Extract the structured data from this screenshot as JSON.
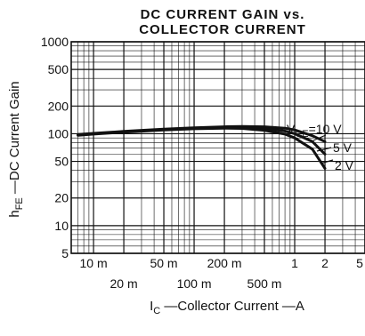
{
  "chart_data": {
    "type": "line",
    "title_lines": [
      "DC CURRENT GAIN vs.",
      "COLLECTOR CURRENT"
    ],
    "xlabel": {
      "main": "I",
      "sub": "C",
      "rest": " —Collector Current —A"
    },
    "ylabel": {
      "main": "h",
      "sub": "FE",
      "rest": " —DC Current Gain"
    },
    "x_scale": "log",
    "y_scale": "log",
    "xlim": [
      0.006,
      5
    ],
    "ylim": [
      5,
      1000
    ],
    "x_ticks_upper": [
      {
        "value": 0.01,
        "label": "10 m"
      },
      {
        "value": 0.05,
        "label": "50 m"
      },
      {
        "value": 0.2,
        "label": "200 m"
      },
      {
        "value": 1,
        "label": "1"
      },
      {
        "value": 2,
        "label": "2"
      },
      {
        "value": 5,
        "label": "5"
      }
    ],
    "x_ticks_lower": [
      {
        "value": 0.02,
        "label": "20 m"
      },
      {
        "value": 0.1,
        "label": "100 m"
      },
      {
        "value": 0.5,
        "label": "500 m"
      }
    ],
    "y_ticks": [
      {
        "value": 1000,
        "label": "1000"
      },
      {
        "value": 500,
        "label": "500"
      },
      {
        "value": 200,
        "label": "200"
      },
      {
        "value": 100,
        "label": "100"
      },
      {
        "value": 50,
        "label": "50"
      },
      {
        "value": 20,
        "label": "20"
      },
      {
        "value": 10,
        "label": "10"
      },
      {
        "value": 5,
        "label": "5"
      }
    ],
    "grid": true,
    "series": [
      {
        "name": "V_CE = 10 V",
        "label_main": "V",
        "label_sub": "CE",
        "label_rest": "=10 V",
        "x": [
          0.007,
          0.01,
          0.02,
          0.05,
          0.1,
          0.2,
          0.3,
          0.5,
          0.8,
          1.0,
          1.5,
          2.0
        ],
        "y": [
          98,
          101,
          106,
          112,
          116,
          119,
          120,
          119,
          115,
          110,
          95,
          82
        ]
      },
      {
        "name": "5 V",
        "label_main": "5 V",
        "x": [
          0.007,
          0.01,
          0.02,
          0.05,
          0.1,
          0.2,
          0.3,
          0.5,
          0.8,
          1.0,
          1.5,
          2.0
        ],
        "y": [
          97,
          100,
          105,
          111,
          115,
          117,
          117,
          114,
          107,
          100,
          82,
          60
        ]
      },
      {
        "name": "2 V",
        "label_main": "2 V",
        "x": [
          0.007,
          0.01,
          0.02,
          0.05,
          0.1,
          0.2,
          0.3,
          0.5,
          0.8,
          1.0,
          1.5,
          2.0
        ],
        "y": [
          96,
          99,
          104,
          110,
          113,
          115,
          114,
          109,
          99,
          90,
          68,
          42
        ]
      }
    ]
  }
}
